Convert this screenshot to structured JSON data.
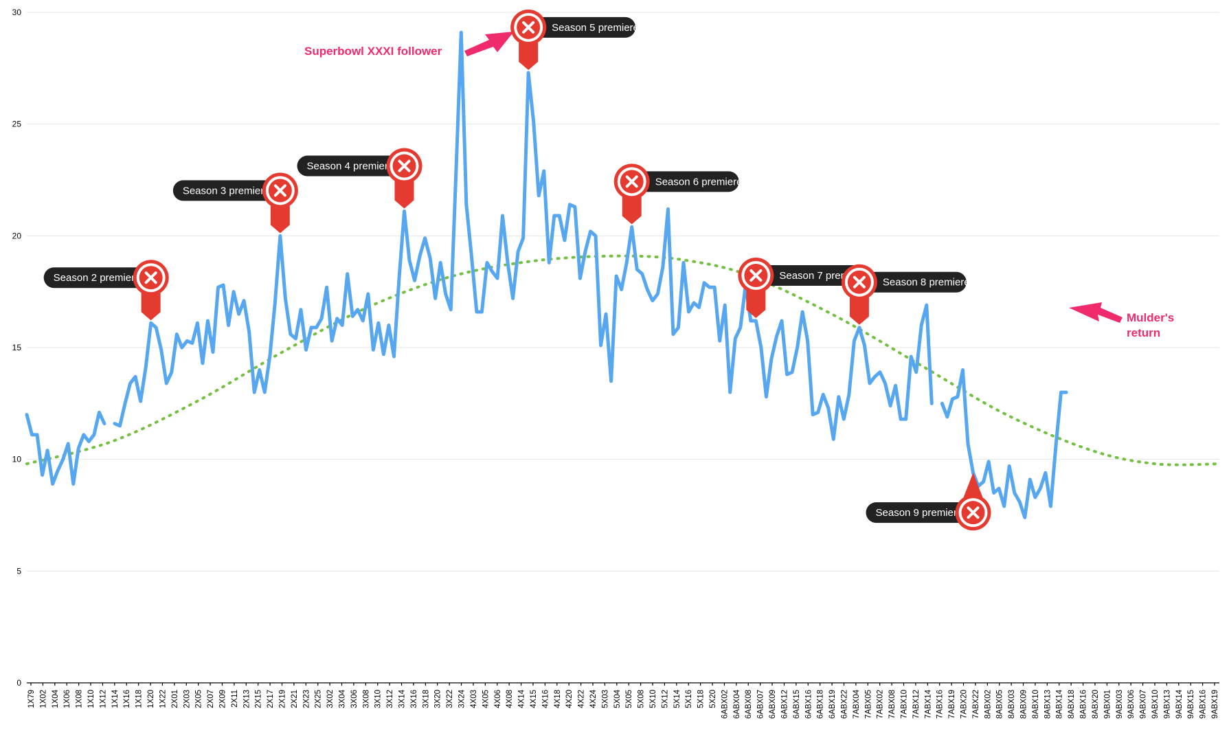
{
  "chart_data": {
    "type": "line",
    "title": "",
    "xlabel": "",
    "ylabel": "",
    "ylim": [
      0,
      30
    ],
    "yticks": [
      0,
      5,
      10,
      15,
      20,
      25,
      30
    ],
    "grid": true,
    "x_tick_labels": [
      "1X79",
      "1X02",
      "1X04",
      "1X06",
      "1X08",
      "1X10",
      "1X12",
      "1X14",
      "1X16",
      "1X18",
      "1X20",
      "1X22",
      "2X01",
      "2X03",
      "2X05",
      "2X07",
      "2X09",
      "2X11",
      "2X13",
      "2X15",
      "2X17",
      "2X19",
      "2X21",
      "2X23",
      "2X25",
      "3X02",
      "3X04",
      "3X06",
      "3X08",
      "3X10",
      "3X12",
      "3X14",
      "3X16",
      "3X18",
      "3X20",
      "3X22",
      "3X24",
      "4X03",
      "4X05",
      "4X06",
      "4X08",
      "4X14",
      "4X15",
      "4X16",
      "4X18",
      "4X20",
      "4X22",
      "4X24",
      "5X03",
      "5X04",
      "5X05",
      "5X08",
      "5X10",
      "5X12",
      "5X14",
      "5X16",
      "5X18",
      "5X20",
      "6ABX02",
      "6ABX04",
      "6ABX08",
      "6ABX07",
      "6ABX09",
      "6ABX12",
      "6ABX15",
      "6ABX16",
      "6ABX18",
      "6ABX19",
      "6ABX22",
      "7ABX04",
      "7ABX05",
      "7ABX02",
      "7ABX08",
      "7ABX10",
      "7ABX12",
      "7ABX14",
      "7ABX16",
      "7ABX19",
      "7ABX20",
      "7ABX22",
      "8ABX02",
      "8ABX05",
      "8ABX03",
      "8ABX09",
      "8ABX10",
      "8ABX13",
      "8ABX14",
      "8ABX18",
      "8ABX16",
      "8ABX20",
      "9ABX01",
      "9ABX03",
      "9ABX06",
      "9ABX07",
      "9ABX10",
      "9ABX13",
      "9ABX14",
      "9ABX15",
      "9ABX16",
      "9ABX19"
    ],
    "series": [
      {
        "color": "#56a6f0",
        "values": [
          12.0,
          11.1,
          11.1,
          9.3,
          10.4,
          8.9,
          9.5,
          10.0,
          10.7,
          8.9,
          10.5,
          11.1,
          10.8,
          11.1,
          12.1,
          11.6,
          null,
          11.6,
          11.5,
          12.5,
          13.4,
          13.7,
          12.6,
          14.1,
          16.1,
          15.9,
          14.9,
          13.4,
          13.9,
          15.6,
          15.0,
          15.3,
          15.2,
          16.1,
          14.3,
          16.2,
          14.8,
          17.7,
          17.8,
          16.0,
          17.5,
          16.5,
          17.1,
          15.7,
          13.0,
          14.0,
          13.0,
          14.6,
          17.0,
          20.0,
          17.2,
          15.6,
          15.4,
          16.7,
          14.9,
          15.9,
          15.9,
          16.3,
          17.7,
          15.3,
          16.3,
          16.0,
          18.3,
          16.4,
          16.7,
          16.2,
          17.4,
          14.9,
          16.1,
          14.7,
          16.0,
          14.6,
          18.1,
          21.1,
          18.9,
          18.0,
          19.1,
          19.9,
          19.0,
          17.2,
          18.8,
          17.4,
          16.7,
          22.8,
          29.1,
          21.4,
          19.1,
          16.6,
          16.6,
          18.8,
          18.4,
          18.1,
          20.9,
          18.8,
          17.2,
          19.3,
          19.9,
          27.3,
          25.1,
          21.8,
          22.9,
          18.8,
          20.9,
          20.9,
          19.8,
          21.4,
          21.3,
          18.1,
          19.3,
          20.2,
          20.0,
          15.1,
          16.5,
          13.5,
          18.2,
          17.6,
          18.8,
          20.4,
          18.5,
          18.3,
          17.6,
          17.1,
          17.4,
          18.6,
          21.2,
          15.6,
          15.9,
          18.8,
          16.6,
          17.0,
          16.8,
          17.9,
          17.7,
          17.7,
          15.3,
          16.9,
          13.0,
          15.4,
          15.9,
          17.8,
          16.2,
          16.2,
          15.0,
          12.8,
          14.5,
          15.5,
          16.2,
          13.8,
          13.9,
          15.0,
          16.6,
          15.3,
          12.0,
          12.1,
          12.9,
          12.3,
          10.9,
          12.8,
          11.8,
          12.9,
          15.3,
          15.9,
          15.1,
          13.4,
          13.7,
          13.9,
          13.4,
          12.4,
          13.3,
          11.8,
          11.8,
          14.6,
          13.9,
          16.0,
          16.9,
          12.5,
          null,
          12.5,
          11.9,
          12.7,
          12.8,
          14.0,
          10.7,
          9.4,
          8.8,
          9.0,
          9.9,
          8.5,
          8.7,
          7.9,
          9.7,
          8.5,
          8.1,
          7.4,
          9.1,
          8.3,
          8.7,
          9.4,
          7.9,
          10.6,
          13.0,
          13.0
        ]
      },
      {
        "name": "",
        "color": "#73bf3f",
        "style": "dotted",
        "values_trend": "polynomial trend",
        "trend_points": [
          [
            0,
            9.8
          ],
          [
            20,
            10.8
          ],
          [
            40,
            12.6
          ],
          [
            60,
            14.8
          ],
          [
            80,
            16.8
          ],
          [
            100,
            18.2
          ],
          [
            120,
            18.9
          ],
          [
            140,
            19.1
          ],
          [
            155,
            18.9
          ],
          [
            170,
            18.2
          ],
          [
            190,
            16.4
          ],
          [
            210,
            14.2
          ],
          [
            230,
            12.0
          ],
          [
            250,
            10.4
          ],
          [
            265,
            9.8
          ],
          [
            280,
            9.8
          ]
        ]
      }
    ],
    "annotations": [
      {
        "label": "Season 2 premiere",
        "index": 24,
        "side": "left"
      },
      {
        "label": "Season 3 premiere",
        "index": 49,
        "side": "left"
      },
      {
        "label": "Season 4 premiere",
        "index": 73,
        "side": "left"
      },
      {
        "label": "Season 5 premiere",
        "index": 97,
        "side": "right"
      },
      {
        "label": "Season 6 premiere",
        "index": 117,
        "side": "right"
      },
      {
        "label": "Season 7 premiere",
        "index": 141,
        "side": "right"
      },
      {
        "label": "Season 8 premiere",
        "index": 161,
        "side": "right"
      },
      {
        "label": "Season 9 premiere",
        "index": 183,
        "side": "left",
        "below": true
      }
    ],
    "notes": [
      {
        "label": "Superbowl XXXI follower",
        "target_index": 84
      },
      {
        "label": "Mulder's return",
        "target_index": 178
      }
    ]
  }
}
